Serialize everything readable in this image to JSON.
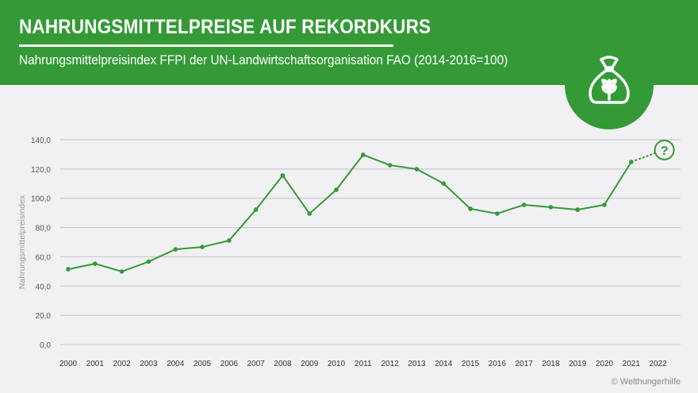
{
  "header": {
    "title": "NAHRUNGSMITTELPREISE AUF REKORDKURS",
    "subtitle": "Nahrungsmittelpreisindex FFPI der UN-Landwirtschaftsorganisation FAO (2014-2016=100)",
    "icon": "grain-sack-icon"
  },
  "colors": {
    "brand": "#349a36",
    "grid": "#c4c4c4"
  },
  "credit": "© Welthungerhilfe",
  "chart_data": {
    "type": "line",
    "title": "NAHRUNGSMITTELPREISE AUF REKORDKURS",
    "xlabel": "",
    "ylabel": "Nahrungsmittelpreisindex",
    "ylim": [
      0,
      140
    ],
    "yticks": [
      "0,0",
      "20,0",
      "40,0",
      "60,0",
      "80,0",
      "100,0",
      "120,0",
      "140,0"
    ],
    "x": [
      "2000",
      "2001",
      "2002",
      "2003",
      "2004",
      "2005",
      "2006",
      "2007",
      "2008",
      "2009",
      "2010",
      "2011",
      "2012",
      "2013",
      "2014",
      "2015",
      "2016",
      "2017",
      "2018",
      "2019",
      "2020",
      "2021",
      "2022"
    ],
    "values": [
      51.5,
      55.3,
      49.9,
      56.7,
      65.1,
      66.7,
      71.1,
      92.2,
      115.6,
      89.5,
      105.8,
      129.7,
      122.6,
      119.9,
      110.1,
      92.8,
      89.5,
      95.5,
      93.9,
      92.2,
      95.5,
      124.8,
      133
    ],
    "projection_label": "?",
    "grid": true
  }
}
